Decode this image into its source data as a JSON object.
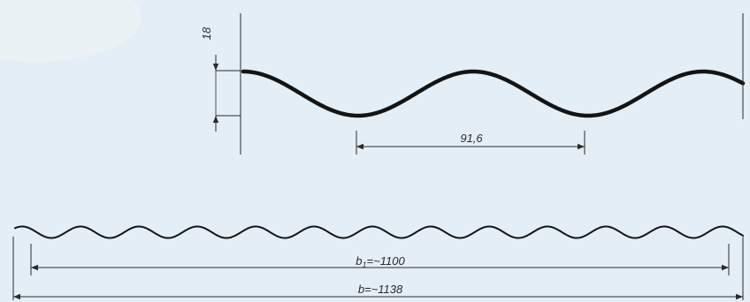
{
  "diagram": {
    "height_label": "18",
    "pitch_label": "91,6",
    "effective_width_label": {
      "main": "b",
      "sub": "1",
      "rest": "=~1100"
    },
    "total_width_label": "b=~1138",
    "colors": {
      "background": "#e4eef6",
      "profile": "#141414",
      "dimension": "#2a2a2a"
    }
  }
}
